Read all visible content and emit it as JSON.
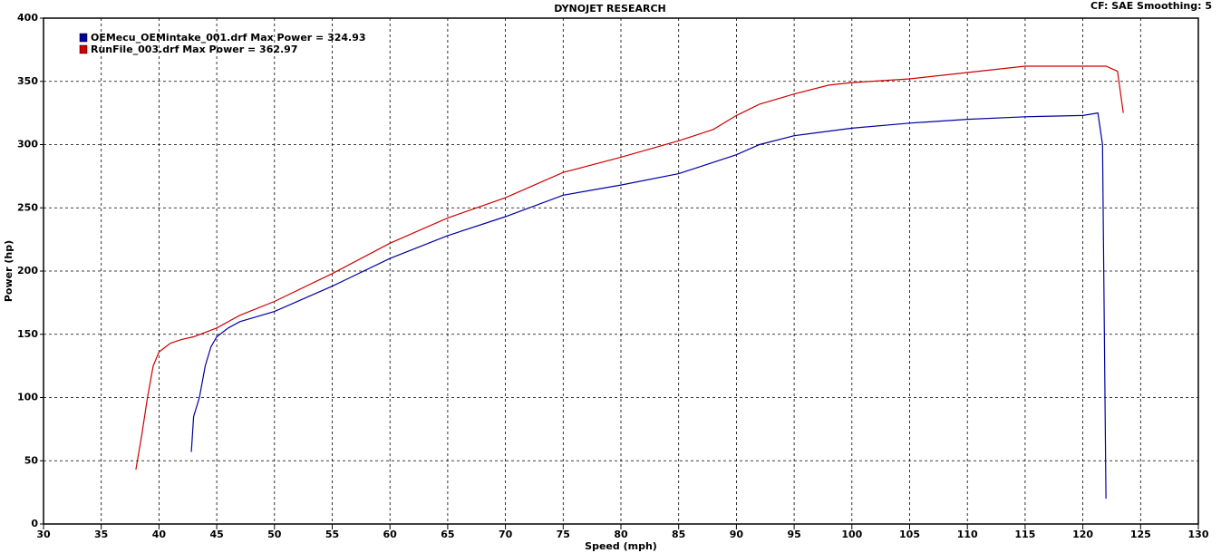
{
  "chart_data": {
    "type": "line",
    "title": "DYNOJET RESEARCH",
    "subtitle": "CF: SAE  Smoothing: 5",
    "x_label": "Speed (mph)",
    "y_label": "Power (hp)",
    "xlim": [
      30,
      130
    ],
    "xticks": [
      30,
      35,
      40,
      45,
      50,
      55,
      60,
      65,
      70,
      75,
      80,
      85,
      90,
      95,
      100,
      105,
      110,
      115,
      120,
      125,
      130
    ],
    "ylim": [
      0,
      400
    ],
    "yticks": [
      0,
      50,
      100,
      150,
      200,
      250,
      300,
      350,
      400
    ],
    "grid": true,
    "legend": "top-left",
    "series": [
      {
        "name": "OEMecu_OEMintake_001.drf Max Power = 324.93",
        "color": "#0000a0",
        "x": [
          42.8,
          43,
          43.5,
          44,
          44.5,
          45,
          46,
          47,
          50,
          55,
          60,
          65,
          70,
          75,
          80,
          85,
          90,
          92,
          95,
          100,
          105,
          110,
          115,
          120,
          121.3,
          121.7,
          122
        ],
        "values": [
          57,
          85,
          100,
          125,
          140,
          148,
          155,
          160,
          168,
          188,
          210,
          228,
          243,
          260,
          268,
          277,
          292,
          300,
          307,
          313,
          317,
          320,
          322,
          323,
          325,
          300,
          20
        ]
      },
      {
        "name": "RunFile_003.drf Max Power = 362.97",
        "color": "#d00000",
        "x": [
          38,
          38.5,
          39,
          39.5,
          40,
          41,
          42,
          43,
          45,
          47,
          50,
          55,
          60,
          65,
          70,
          75,
          80,
          85,
          88,
          90,
          92,
          95,
          98,
          100,
          105,
          110,
          115,
          120,
          122,
          123,
          123.5
        ],
        "values": [
          43,
          70,
          100,
          125,
          136,
          143,
          146,
          148,
          155,
          165,
          176,
          198,
          222,
          242,
          258,
          278,
          290,
          303,
          312,
          323,
          332,
          340,
          347,
          349,
          352,
          357,
          362,
          362,
          362,
          358,
          325
        ]
      }
    ]
  }
}
